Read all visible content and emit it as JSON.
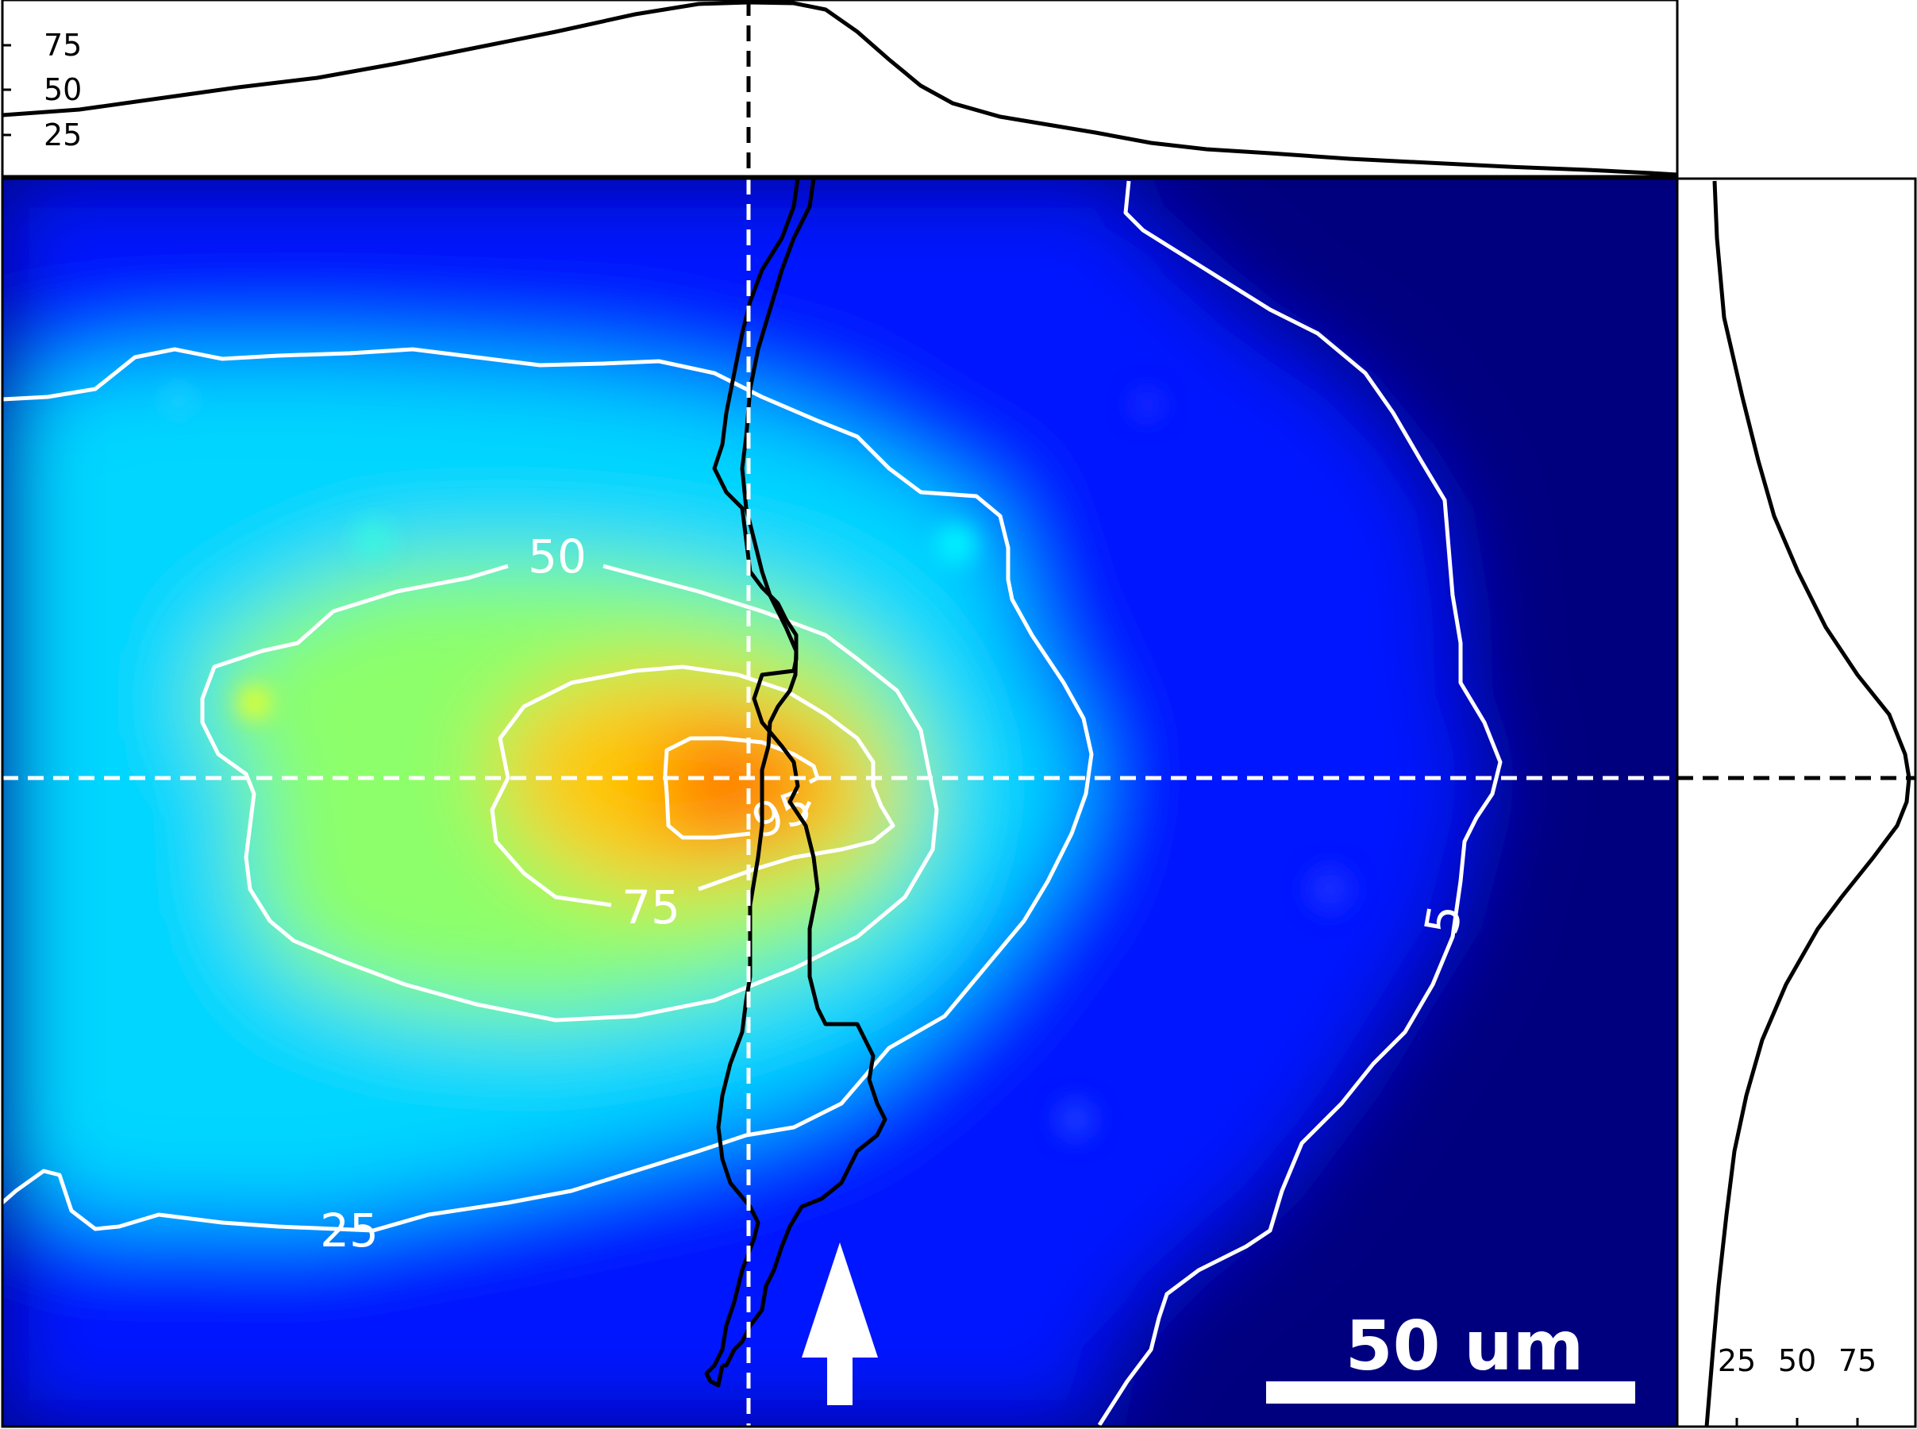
{
  "chart_data": {
    "type": "heatmap",
    "title": "",
    "colormap": "jet",
    "description_values": "normalized intensity (0-100) with marginal profiles through the peak",
    "peak_location": {
      "x_um": 88,
      "y_um": 65
    },
    "contours": [
      {
        "level": 95,
        "label": "95"
      },
      {
        "level": 75,
        "label": "75"
      },
      {
        "level": 50,
        "label": "50"
      },
      {
        "level": 25,
        "label": "25"
      },
      {
        "level": 5,
        "label": "5"
      }
    ],
    "top_profile": {
      "ticks": [
        "25",
        "50",
        "75"
      ],
      "ylim": [
        0,
        100
      ],
      "x_um": [
        0,
        20,
        40,
        60,
        80,
        88,
        95,
        105,
        115,
        130,
        150,
        170,
        197
      ],
      "values": [
        35,
        40,
        48,
        58,
        75,
        100,
        97,
        60,
        30,
        22,
        12,
        8,
        3
      ]
    },
    "right_profile": {
      "ticks": [
        "25",
        "50",
        "75"
      ],
      "xlim": [
        0,
        100
      ],
      "y_um": [
        0,
        20,
        40,
        55,
        65,
        75,
        95,
        110,
        130,
        147
      ],
      "values": [
        3,
        8,
        25,
        65,
        100,
        70,
        25,
        12,
        5,
        3
      ]
    },
    "scale_bar": {
      "label": "50 um",
      "length_um": 50
    },
    "arrow": "up",
    "crosshair_lines": "dashed",
    "image_extent_um": {
      "width": 197,
      "height": 147
    }
  },
  "colors": {
    "background_low": "#00007f",
    "contour": "#ffffff",
    "boundary": "#000000",
    "crosshair_in_plot": "#ffffff",
    "crosshair_in_profile": "#000000"
  }
}
